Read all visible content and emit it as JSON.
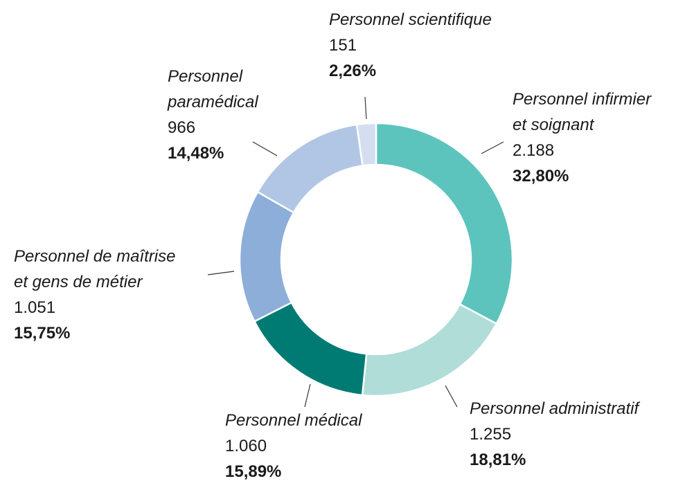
{
  "chart_data": {
    "type": "donut",
    "categories": [
      "Personnel infirmier\net soignant",
      "Personnel administratif",
      "Personnel médical",
      "Personnel de maîtrise\net gens de métier",
      "Personnel\nparamédical",
      "Personnel scientifique"
    ],
    "values": [
      2188,
      1255,
      1060,
      1051,
      966,
      151
    ],
    "value_labels": [
      "2.188",
      "1.255",
      "1.060",
      "1.051",
      "966",
      "151"
    ],
    "percentages": [
      32.8,
      18.81,
      15.89,
      15.75,
      14.48,
      2.26
    ],
    "percentage_labels": [
      "32,80%",
      "18,81%",
      "15,89%",
      "15,75%",
      "14,48%",
      "2,26%"
    ],
    "colors": [
      "#5cc4bd",
      "#b1ddd9",
      "#007b73",
      "#8daed8",
      "#b1c6e5",
      "#d4def0"
    ]
  }
}
